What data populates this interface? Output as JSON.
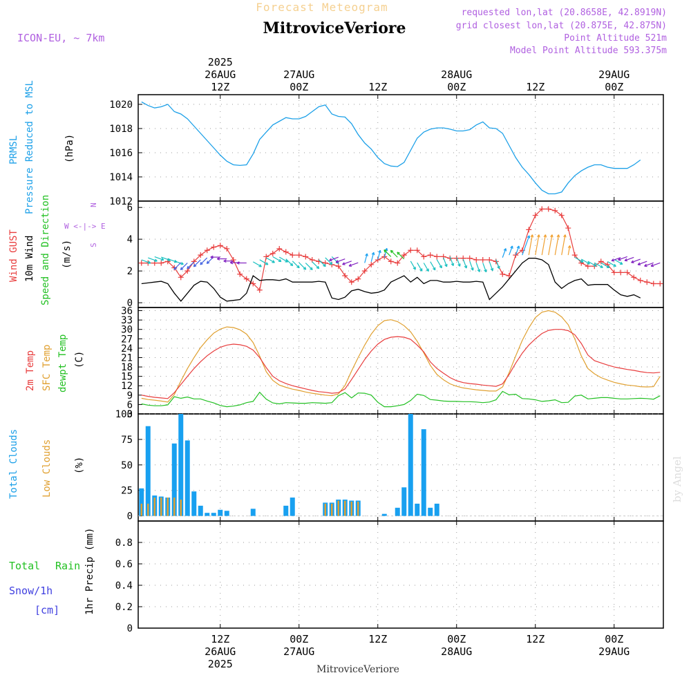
{
  "header": {
    "forecast_title": "Forecast Meteogram",
    "station": "MitroviceVeriore",
    "model": "ICON-EU, ~ 7km",
    "requested": "requested lon,lat (20.8658E, 42.8919N)",
    "closest": "grid closest lon,lat (20.875E, 42.875N)",
    "point_alt": "Point Altitude 521m",
    "model_alt": "Model Point Altitude 593.375m",
    "footer_station": "MitroviceVeriore",
    "watermark": "by Angel"
  },
  "colors": {
    "pressure": "#1ca0e8",
    "gust": "#e83c3c",
    "wind": "#000000",
    "temp2m": "#e83c3c",
    "sfc": "#e0a030",
    "dewpt": "#22c022",
    "total_clouds": "#18a0f0",
    "low_clouds": "#e0a030",
    "rain": "#22c022",
    "snow": "#4040e0",
    "label_purple": "#b060e0"
  },
  "time_axis": {
    "top_ticks": [
      {
        "t": 12,
        "lines": [
          "2025",
          "26AUG",
          "12Z"
        ]
      },
      {
        "t": 24,
        "lines": [
          "27AUG",
          "00Z"
        ]
      },
      {
        "t": 36,
        "lines": [
          "12Z"
        ]
      },
      {
        "t": 48,
        "lines": [
          "28AUG",
          "00Z"
        ]
      },
      {
        "t": 60,
        "lines": [
          "12Z"
        ]
      },
      {
        "t": 72,
        "lines": [
          "29AUG",
          "00Z"
        ]
      }
    ],
    "bottom_ticks": [
      {
        "t": 12,
        "lines": [
          "12Z",
          "26AUG",
          "2025"
        ]
      },
      {
        "t": 24,
        "lines": [
          "00Z",
          "27AUG"
        ]
      },
      {
        "t": 36,
        "lines": [
          "12Z"
        ]
      },
      {
        "t": 48,
        "lines": [
          "00Z",
          "28AUG"
        ]
      },
      {
        "t": 60,
        "lines": [
          "12Z"
        ]
      },
      {
        "t": 72,
        "lines": [
          "00Z",
          "29AUG"
        ]
      }
    ]
  },
  "labels": {
    "pressure": [
      "PRMSL",
      "Pressure Reduced to MSL",
      "(hPa)"
    ],
    "wind": [
      "Wind GUST",
      "10m Wind",
      "Speed and Direction",
      "(m/s)"
    ],
    "compass": [
      "N",
      "W <-|-> E",
      "S"
    ],
    "temp": [
      "2m Temp",
      "SFC Temp",
      "dewpt Temp",
      "(C)"
    ],
    "clouds": [
      "Total Clouds",
      "Low Clouds",
      "(%)"
    ],
    "precip": [
      "Total",
      "Rain",
      "Snow/1h",
      "[cm]",
      "1hr Precip (mm)"
    ]
  },
  "chart_data": [
    {
      "type": "line",
      "title": "PRMSL Pressure Reduced to MSL",
      "ylabel": "(hPa)",
      "ylim": [
        1012,
        1020.8
      ],
      "yticks": [
        1012,
        1014,
        1016,
        1018,
        1020
      ],
      "grid": true,
      "series": [
        {
          "name": "PRMSL",
          "x": [
            0,
            1,
            2,
            3,
            4,
            5,
            6,
            7,
            8,
            9,
            10,
            11,
            12,
            13,
            14,
            15,
            16,
            17,
            18,
            19,
            20,
            21,
            22,
            23,
            24,
            25,
            26,
            27,
            28,
            29,
            30,
            31,
            32,
            33,
            34,
            35,
            36,
            37,
            38,
            39,
            40,
            41,
            42,
            43,
            44,
            45,
            46,
            47,
            48,
            49,
            50,
            51,
            52,
            53,
            54,
            55,
            56,
            57,
            58,
            59,
            60,
            61,
            62,
            63,
            64,
            65,
            66,
            67,
            68,
            69,
            70,
            71,
            72,
            73,
            74,
            75,
            76
          ],
          "values": [
            1020.2,
            1019.9,
            1019.7,
            1019.8,
            1020.0,
            1019.4,
            1019.2,
            1018.8,
            1018.2,
            1017.6,
            1017.0,
            1016.4,
            1015.8,
            1015.3,
            1015.0,
            1014.95,
            1015.0,
            1015.9,
            1017.1,
            1017.7,
            1018.3,
            1018.6,
            1018.9,
            1018.8,
            1018.8,
            1019.0,
            1019.4,
            1019.8,
            1019.95,
            1019.2,
            1019.0,
            1018.95,
            1018.4,
            1017.5,
            1016.8,
            1016.3,
            1015.6,
            1015.1,
            1014.9,
            1014.85,
            1015.2,
            1016.2,
            1017.2,
            1017.7,
            1017.95,
            1018.05,
            1018.05,
            1017.95,
            1017.8,
            1017.8,
            1017.9,
            1018.3,
            1018.55,
            1018.05,
            1018.0,
            1017.6,
            1016.6,
            1015.6,
            1014.8,
            1014.2,
            1013.5,
            1012.9,
            1012.6,
            1012.6,
            1012.75,
            1013.5,
            1014.1,
            1014.5,
            1014.8,
            1015.0,
            1015.0,
            1014.8,
            1014.7,
            1014.7,
            1014.7,
            1015.0,
            1015.4
          ]
        }
      ]
    },
    {
      "type": "line",
      "title": "Wind GUST / 10m Wind Speed and Direction",
      "ylabel": "(m/s)",
      "ylim": [
        -0.3,
        6.4
      ],
      "yticks": [
        0,
        2,
        4,
        6
      ],
      "grid": true,
      "series": [
        {
          "name": "Wind GUST",
          "values": [
            2.5,
            2.5,
            2.5,
            2.5,
            2.6,
            2.2,
            1.6,
            2.0,
            2.6,
            3.0,
            3.3,
            3.5,
            3.6,
            3.4,
            2.7,
            1.8,
            1.5,
            1.2,
            0.8,
            2.9,
            3.1,
            3.4,
            3.2,
            3.0,
            3.0,
            2.9,
            2.7,
            2.6,
            2.5,
            2.4,
            2.3,
            1.7,
            1.3,
            1.5,
            2.0,
            2.4,
            2.7,
            2.9,
            2.6,
            2.5,
            3.0,
            3.3,
            3.3,
            2.9,
            3.0,
            2.9,
            2.9,
            2.8,
            2.8,
            2.8,
            2.8,
            2.7,
            2.7,
            2.7,
            2.6,
            1.8,
            1.7,
            3.0,
            3.3,
            4.6,
            5.5,
            5.9,
            5.9,
            5.8,
            5.5,
            4.7,
            3.0,
            2.5,
            2.3,
            2.3,
            2.6,
            2.4,
            1.9,
            1.9,
            1.9,
            1.6,
            1.4,
            1.3,
            1.2,
            1.2
          ]
        },
        {
          "name": "10m Wind",
          "values": [
            1.2,
            1.25,
            1.3,
            1.35,
            1.2,
            0.6,
            0.1,
            0.6,
            1.1,
            1.35,
            1.3,
            0.9,
            0.35,
            0.1,
            0.15,
            0.2,
            0.6,
            1.7,
            1.4,
            1.45,
            1.45,
            1.4,
            1.5,
            1.3,
            1.3,
            1.3,
            1.3,
            1.35,
            1.3,
            0.3,
            0.2,
            0.35,
            0.75,
            0.85,
            0.7,
            0.6,
            0.65,
            0.8,
            1.3,
            1.5,
            1.7,
            1.3,
            1.6,
            1.2,
            1.4,
            1.4,
            1.3,
            1.3,
            1.35,
            1.3,
            1.3,
            1.35,
            1.3,
            0.2,
            0.6,
            1.0,
            1.5,
            2.0,
            2.5,
            2.8,
            2.8,
            2.7,
            2.4,
            1.3,
            0.9,
            1.2,
            1.4,
            1.5,
            1.1,
            1.15,
            1.15,
            1.15,
            0.8,
            0.5,
            0.4,
            0.5,
            0.3
          ]
        }
      ]
    },
    {
      "type": "line",
      "title": "2m Temp / SFC Temp / dewpt Temp",
      "ylabel": "(C)",
      "ylim": [
        3,
        37
      ],
      "yticks": [
        3,
        6,
        9,
        12,
        15,
        18,
        21,
        24,
        27,
        30,
        33,
        36
      ],
      "grid": true,
      "series": [
        {
          "name": "2m Temp",
          "values": [
            9.0,
            8.6,
            8.3,
            8.1,
            7.9,
            9.8,
            12.4,
            15.0,
            17.5,
            19.7,
            21.6,
            23.1,
            24.3,
            25.0,
            25.3,
            25.1,
            24.6,
            23.4,
            21.0,
            17.8,
            15.0,
            13.6,
            12.7,
            12.0,
            11.5,
            11.0,
            10.5,
            10.1,
            9.9,
            9.6,
            9.8,
            11.0,
            14.0,
            17.2,
            20.4,
            23.1,
            25.3,
            26.8,
            27.5,
            27.7,
            27.5,
            26.8,
            25.0,
            22.8,
            19.6,
            17.5,
            16.0,
            14.6,
            13.6,
            13.0,
            12.7,
            12.5,
            12.2,
            12.0,
            11.8,
            12.6,
            15.6,
            19.2,
            22.4,
            25.0,
            27.0,
            28.7,
            29.7,
            30.0,
            30.0,
            29.6,
            28.3,
            25.5,
            21.8,
            20.0,
            19.3,
            18.6,
            18.0,
            17.6,
            17.2,
            16.9,
            16.5,
            16.2,
            16.1,
            16.3
          ]
        },
        {
          "name": "SFC Temp",
          "values": [
            8.0,
            7.6,
            7.4,
            7.1,
            6.8,
            9.2,
            13.5,
            17.5,
            21.0,
            24.2,
            26.7,
            28.8,
            30.1,
            30.8,
            30.6,
            29.9,
            28.5,
            25.8,
            21.5,
            16.5,
            13.7,
            12.2,
            11.5,
            10.9,
            10.5,
            10.0,
            9.6,
            9.3,
            9.0,
            8.8,
            9.4,
            12.1,
            16.7,
            21.0,
            25.0,
            28.5,
            31.2,
            32.8,
            33.1,
            32.5,
            31.2,
            29.2,
            26.2,
            22.5,
            18.5,
            15.6,
            13.9,
            12.6,
            11.8,
            11.3,
            11.0,
            10.7,
            10.5,
            10.3,
            10.3,
            11.6,
            16.2,
            21.5,
            26.5,
            30.5,
            33.8,
            35.5,
            36.0,
            35.5,
            34.0,
            31.5,
            27.0,
            21.5,
            17.5,
            15.8,
            14.6,
            13.8,
            13.1,
            12.6,
            12.2,
            12.0,
            11.7,
            11.6,
            11.7,
            15.0
          ]
        },
        {
          "name": "dewpt Temp",
          "values": [
            6.2,
            5.8,
            5.6,
            5.6,
            5.9,
            8.5,
            8.0,
            8.4,
            7.8,
            7.8,
            7.1,
            6.5,
            5.7,
            5.3,
            5.5,
            5.9,
            6.6,
            7.0,
            9.9,
            7.7,
            6.5,
            6.2,
            6.6,
            6.5,
            6.4,
            6.4,
            6.6,
            6.5,
            6.4,
            6.6,
            8.8,
            9.8,
            8.1,
            9.7,
            9.6,
            9.0,
            6.7,
            5.3,
            5.3,
            5.6,
            6.0,
            7.3,
            9.3,
            8.9,
            7.6,
            7.4,
            7.1,
            7.0,
            7.0,
            6.9,
            6.9,
            6.8,
            6.6,
            6.8,
            7.5,
            10.2,
            9.1,
            9.3,
            7.9,
            7.8,
            7.5,
            7.0,
            7.2,
            7.5,
            6.6,
            6.7,
            8.7,
            9.0,
            7.8,
            8.0,
            8.2,
            8.2,
            8.0,
            7.8,
            7.8,
            7.9,
            8.0,
            7.9,
            7.7,
            8.8
          ]
        }
      ]
    },
    {
      "type": "bar",
      "title": "Total Clouds / Low Clouds",
      "ylabel": "(%)",
      "ylim": [
        -5,
        100
      ],
      "yticks": [
        0,
        25,
        50,
        75,
        100
      ],
      "grid": true,
      "series": [
        {
          "name": "Total Clouds",
          "values": [
            27,
            88,
            20,
            19,
            18,
            71,
            100,
            74,
            24,
            10,
            3,
            3,
            6,
            5,
            0,
            0,
            0,
            7,
            0,
            0,
            0,
            0,
            10,
            18,
            0,
            0,
            0,
            0,
            13,
            13,
            16,
            16,
            15,
            15,
            0,
            0,
            0,
            2,
            0,
            8,
            28,
            100,
            12,
            85,
            8,
            12,
            0,
            0,
            0,
            0,
            0,
            0,
            0,
            0,
            0,
            0,
            0,
            0,
            0,
            0,
            0,
            0,
            0,
            0,
            0,
            0,
            0,
            0,
            0,
            0,
            0,
            0,
            0,
            0,
            0,
            0,
            0,
            0,
            0,
            0
          ]
        },
        {
          "name": "Low Clouds",
          "values": [
            12,
            12,
            18,
            18,
            18,
            18,
            16,
            0,
            0,
            0,
            0,
            0,
            0,
            0,
            0,
            0,
            0,
            0,
            0,
            0,
            0,
            0,
            0,
            0,
            0,
            0,
            0,
            0,
            12,
            12,
            15,
            15,
            14,
            14,
            0,
            0,
            0,
            0,
            0,
            0,
            0,
            0,
            0,
            0,
            0,
            0,
            0,
            0,
            0,
            0,
            0,
            0,
            0,
            0,
            0,
            0,
            0,
            0,
            0,
            0,
            0,
            0,
            0,
            0,
            0,
            0,
            0,
            0,
            0,
            0,
            0,
            0,
            0,
            0,
            0,
            0,
            0,
            0,
            0,
            0
          ]
        }
      ]
    },
    {
      "type": "bar",
      "title": "1hr Precip (mm)",
      "ylabel": "1hr Precip (mm)",
      "ylim": [
        0,
        1.0
      ],
      "yticks": [
        0,
        0.2,
        0.4,
        0.6,
        0.8
      ],
      "grid": true,
      "series": [
        {
          "name": "Total Rain",
          "values": []
        }
      ]
    }
  ]
}
